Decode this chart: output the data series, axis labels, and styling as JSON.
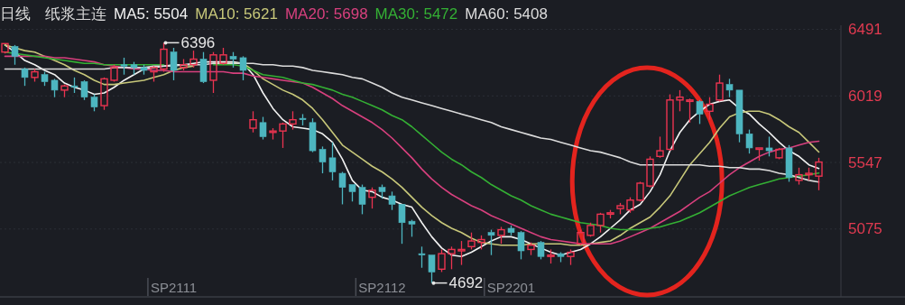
{
  "chart_data": {
    "type": "candlestick",
    "title": "日线",
    "subtitle": "纸浆主连",
    "categories": [
      null,
      null,
      null,
      null,
      null,
      null,
      null,
      null,
      null,
      null,
      null,
      null,
      null,
      null,
      null,
      null,
      null,
      "SP2111",
      null,
      null,
      null,
      null,
      null,
      null,
      null,
      null,
      null,
      null,
      null,
      null,
      null,
      null,
      null,
      null,
      null,
      null,
      null,
      null,
      "SP2112",
      null,
      null,
      null,
      null,
      null,
      null,
      null,
      null,
      null,
      null,
      null,
      null,
      "SP2201",
      null,
      null,
      null,
      null,
      null,
      null,
      null,
      null,
      null,
      null,
      null,
      null,
      null,
      null,
      null,
      null,
      null,
      null,
      null,
      null,
      null,
      null,
      null,
      null,
      null,
      null,
      null,
      null,
      null,
      null,
      null
    ],
    "ohlc": [
      [
        6330,
        6390,
        6320,
        6390
      ],
      [
        6370,
        6380,
        6240,
        6300
      ],
      [
        6210,
        6220,
        6090,
        6150
      ],
      [
        6150,
        6210,
        6120,
        6190
      ],
      [
        6170,
        6190,
        6090,
        6120
      ],
      [
        6130,
        6140,
        6010,
        6060
      ],
      [
        6060,
        6100,
        6010,
        6090
      ],
      [
        6090,
        6150,
        6040,
        6080
      ],
      [
        6120,
        6130,
        5990,
        6010
      ],
      [
        6010,
        6030,
        5910,
        5940
      ],
      [
        5950,
        6150,
        5920,
        6140
      ],
      [
        6130,
        6240,
        6120,
        6220
      ],
      [
        6240,
        6290,
        6170,
        6230
      ],
      [
        6240,
        6260,
        6170,
        6220
      ],
      [
        6220,
        6240,
        6170,
        6200
      ],
      [
        6190,
        6230,
        6120,
        6220
      ],
      [
        6210,
        6396,
        6190,
        6350
      ],
      [
        6330,
        6360,
        6130,
        6200
      ],
      [
        6220,
        6280,
        6200,
        6240
      ],
      [
        6240,
        6340,
        6220,
        6280
      ],
      [
        6280,
        6330,
        6110,
        6120
      ],
      [
        6130,
        6330,
        6040,
        6310
      ],
      [
        6250,
        6360,
        6240,
        6310
      ],
      [
        6300,
        6330,
        6220,
        6280
      ],
      [
        6290,
        6300,
        6130,
        6200
      ],
      [
        5790,
        5910,
        5760,
        5850
      ],
      [
        5830,
        5870,
        5710,
        5730
      ],
      [
        5760,
        5790,
        5710,
        5770
      ],
      [
        5770,
        5830,
        5650,
        5820
      ],
      [
        5820,
        5910,
        5780,
        5850
      ],
      [
        5860,
        5890,
        5810,
        5850
      ],
      [
        5830,
        5860,
        5620,
        5630
      ],
      [
        5640,
        5660,
        5470,
        5550
      ],
      [
        5580,
        5690,
        5420,
        5480
      ],
      [
        5470,
        5480,
        5250,
        5370
      ],
      [
        5390,
        5390,
        5270,
        5340
      ],
      [
        5370,
        5390,
        5180,
        5250
      ],
      [
        5300,
        5370,
        5220,
        5350
      ],
      [
        5370,
        5390,
        5290,
        5340
      ],
      [
        5310,
        5340,
        5210,
        5250
      ],
      [
        5250,
        5250,
        4970,
        5120
      ],
      [
        5130,
        5140,
        5020,
        5110
      ],
      [
        4900,
        4950,
        4800,
        4890
      ],
      [
        4890,
        4890,
        4692,
        4770
      ],
      [
        4790,
        4930,
        4770,
        4900
      ],
      [
        4900,
        4950,
        4790,
        4930
      ],
      [
        4920,
        4990,
        4820,
        4930
      ],
      [
        4950,
        5050,
        4930,
        4990
      ],
      [
        4980,
        5030,
        4930,
        5000
      ],
      [
        5050,
        5070,
        4890,
        5030
      ],
      [
        5030,
        5090,
        4970,
        5070
      ],
      [
        5080,
        5100,
        5030,
        5050
      ],
      [
        5050,
        5060,
        4860,
        4920
      ],
      [
        4930,
        4980,
        4890,
        4960
      ],
      [
        4980,
        4990,
        4860,
        4880
      ],
      [
        4880,
        4930,
        4830,
        4890
      ],
      [
        4900,
        4910,
        4840,
        4880
      ],
      [
        4880,
        4930,
        4820,
        4910
      ],
      [
        4970,
        5070,
        4960,
        5050
      ],
      [
        5030,
        5120,
        5020,
        5100
      ],
      [
        5100,
        5190,
        5050,
        5180
      ],
      [
        5180,
        5210,
        5150,
        5190
      ],
      [
        5220,
        5260,
        5180,
        5240
      ],
      [
        5210,
        5300,
        5190,
        5280
      ],
      [
        5280,
        5410,
        5270,
        5400
      ],
      [
        5380,
        5590,
        5370,
        5570
      ],
      [
        5590,
        5730,
        5580,
        5630
      ],
      [
        5640,
        6030,
        5630,
        5990
      ],
      [
        5990,
        6060,
        5910,
        6010
      ],
      [
        5980,
        6000,
        5830,
        5990
      ],
      [
        5980,
        5990,
        5820,
        5890
      ],
      [
        5910,
        6010,
        5850,
        5960
      ],
      [
        5990,
        6170,
        5980,
        6110
      ],
      [
        6100,
        6140,
        6010,
        6060
      ],
      [
        6060,
        6060,
        5690,
        5750
      ],
      [
        5750,
        5780,
        5610,
        5650
      ],
      [
        5640,
        5650,
        5560,
        5650
      ],
      [
        5650,
        5730,
        5590,
        5630
      ],
      [
        5580,
        5650,
        5570,
        5640
      ],
      [
        5650,
        5670,
        5410,
        5440
      ],
      [
        5420,
        5510,
        5390,
        5460
      ],
      [
        5460,
        5510,
        5420,
        5470
      ],
      [
        5450,
        5580,
        5350,
        5550
      ]
    ],
    "colors": [
      "#eb3450",
      "#4db6c0",
      "#4db6c0",
      "#eb3450",
      "#4db6c0",
      "#4db6c0",
      "#eb3450",
      "#4db6c0",
      "#4db6c0",
      "#4db6c0",
      "#eb3450",
      "#eb3450",
      "#4db6c0",
      "#4db6c0",
      "#4db6c0",
      "#eb3450",
      "#eb3450",
      "#4db6c0",
      "#eb3450",
      "#eb3450",
      "#4db6c0",
      "#eb3450",
      "#eb3450",
      "#4db6c0",
      "#4db6c0",
      "#eb3450",
      "#4db6c0",
      "#eb3450",
      "#eb3450",
      "#eb3450",
      "#4db6c0",
      "#4db6c0",
      "#4db6c0",
      "#4db6c0",
      "#4db6c0",
      "#4db6c0",
      "#4db6c0",
      "#eb3450",
      "#4db6c0",
      "#4db6c0",
      "#4db6c0",
      "#4db6c0",
      "#4db6c0",
      "#4db6c0",
      "#eb3450",
      "#eb3450",
      "#eb3450",
      "#eb3450",
      "#eb3450",
      "#4db6c0",
      "#eb3450",
      "#4db6c0",
      "#4db6c0",
      "#eb3450",
      "#4db6c0",
      "#eb3450",
      "#4db6c0",
      "#eb3450",
      "#eb3450",
      "#eb3450",
      "#eb3450",
      "#eb3450",
      "#eb3450",
      "#eb3450",
      "#eb3450",
      "#eb3450",
      "#eb3450",
      "#eb3450",
      "#eb3450",
      "#eb3450",
      "#4db6c0",
      "#eb3450",
      "#eb3450",
      "#4db6c0",
      "#4db6c0",
      "#4db6c0",
      "#eb3450",
      "#4db6c0",
      "#eb3450",
      "#4db6c0",
      "#eb3450",
      "#eb3450",
      "#eb3450"
    ],
    "series": [
      {
        "type": "line",
        "name": "MA5: 5504",
        "color": "#f2f2f2",
        "values": [
          6380,
          6330,
          6270,
          6240,
          6200,
          6170,
          6110,
          6080,
          6060,
          6030,
          6040,
          6080,
          6130,
          6170,
          6210,
          6220,
          6230,
          6240,
          6240,
          6250,
          6260,
          6260,
          6260,
          6260,
          6250,
          6170,
          6040,
          5930,
          5850,
          5800,
          5790,
          5780,
          5750,
          5690,
          5570,
          5420,
          5350,
          5340,
          5300,
          5280,
          5250,
          5230,
          5120,
          5020,
          4940,
          4890,
          4880,
          4910,
          4950,
          4990,
          5020,
          5020,
          5000,
          4970,
          4940,
          4910,
          4890,
          4910,
          4930,
          4970,
          5020,
          5080,
          5140,
          5210,
          5250,
          5340,
          5460,
          5630,
          5760,
          5850,
          5910,
          5960,
          5980,
          5990,
          5930,
          5890,
          5820,
          5760,
          5690,
          5630,
          5590,
          5530,
          5504
        ]
      },
      {
        "type": "line",
        "name": "MA10: 5621",
        "color": "#c8c87a",
        "values": [
          6380,
          6360,
          6340,
          6330,
          6300,
          6270,
          6240,
          6200,
          6170,
          6130,
          6100,
          6100,
          6110,
          6120,
          6130,
          6150,
          6170,
          6200,
          6220,
          6230,
          null,
          6250,
          6250,
          6250,
          6250,
          6200,
          6140,
          6100,
          6060,
          6030,
          5990,
          5930,
          5850,
          5760,
          5670,
          5620,
          5570,
          5520,
          5480,
          5430,
          5370,
          5300,
          5230,
          5170,
          5120,
          5080,
          5050,
          5010,
          4980,
          4970,
          4960,
          4960,
          4960,
          4970,
          4970,
          4970,
          4970,
          4960,
          4960,
          4970,
          4980,
          4990,
          5030,
          5080,
          5120,
          5160,
          5230,
          5310,
          5420,
          5530,
          5610,
          5690,
          5790,
          5870,
          5900,
          5910,
          5910,
          5890,
          5850,
          5800,
          5760,
          5690,
          5621
        ]
      },
      {
        "type": "line",
        "name": "MA20: 5698",
        "color": "#d8407e",
        "values": [
          6300,
          6300,
          6300,
          6300,
          6300,
          6290,
          6290,
          6280,
          6270,
          6260,
          6240,
          6230,
          6220,
          6210,
          6210,
          6200,
          6200,
          6190,
          6190,
          6190,
          6190,
          6190,
          6190,
          6180,
          6180,
          6160,
          6150,
          6140,
          6130,
          6120,
          6110,
          6080,
          6040,
          6000,
          5950,
          5910,
          5870,
          5830,
          5780,
          5720,
          5650,
          5580,
          5500,
          5430,
          5370,
          5320,
          5280,
          5240,
          5210,
          5170,
          5140,
          5110,
          5080,
          5050,
          5020,
          5000,
          4990,
          4980,
          4970,
          4970,
          4970,
          4970,
          4990,
          5020,
          5050,
          5080,
          5120,
          5160,
          5200,
          5250,
          5300,
          5340,
          5400,
          5460,
          5510,
          5550,
          5590,
          5620,
          5640,
          5650,
          5670,
          5690,
          5698
        ]
      },
      {
        "type": "line",
        "name": "MA30: 5472",
        "color": "#34b034",
        "values": [
          6330,
          6320,
          6310,
          6300,
          6290,
          6280,
          6270,
          6260,
          6250,
          6250,
          6240,
          6240,
          6240,
          6240,
          6240,
          6240,
          6240,
          null,
          6240,
          6240,
          null,
          6240,
          6240,
          6240,
          6230,
          6200,
          6170,
          6160,
          6150,
          6130,
          6110,
          6100,
          6080,
          6060,
          6030,
          6010,
          5980,
          5950,
          5920,
          5880,
          5850,
          5800,
          5740,
          5680,
          5620,
          5570,
          5530,
          5480,
          5440,
          5390,
          5350,
          5310,
          5280,
          5240,
          5210,
          5180,
          5160,
          5140,
          5120,
          5110,
          5100,
          5080,
          5070,
          5070,
          5070,
          5080,
          5090,
          5110,
          5130,
          5160,
          5190,
          5230,
          5270,
          5310,
          5340,
          5370,
          5390,
          5410,
          5430,
          5440,
          5450,
          5460,
          5472
        ]
      },
      {
        "type": "line",
        "name": "MA60: 5408",
        "color": "#dcdcdc",
        "values": [
          6210,
          6210,
          6210,
          6210,
          6210,
          6210,
          6210,
          6210,
          6210,
          6210,
          6210,
          6220,
          6220,
          6220,
          6220,
          6230,
          6230,
          6230,
          6240,
          6240,
          6240,
          6250,
          6250,
          6250,
          6250,
          6250,
          6240,
          6240,
          6230,
          6230,
          6220,
          6200,
          6190,
          6180,
          6170,
          6150,
          6140,
          6110,
          6080,
          6040,
          6010,
          5990,
          5970,
          5950,
          5930,
          5910,
          5890,
          5870,
          5850,
          5830,
          5800,
          5780,
          5760,
          5740,
          5720,
          5710,
          5690,
          5670,
          5650,
          5630,
          5620,
          5600,
          5580,
          5550,
          5530,
          5530,
          5530,
          5530,
          5530,
          5530,
          5530,
          5520,
          5520,
          5510,
          5510,
          5500,
          5500,
          5490,
          5470,
          5460,
          5440,
          5420,
          5408
        ]
      }
    ],
    "ylim": [
      4600,
      6520
    ],
    "yticks": [
      6491,
      6019,
      5547,
      5075
    ],
    "grid": "y",
    "legend": "top left",
    "annotations": [
      "6396",
      "4692"
    ]
  }
}
